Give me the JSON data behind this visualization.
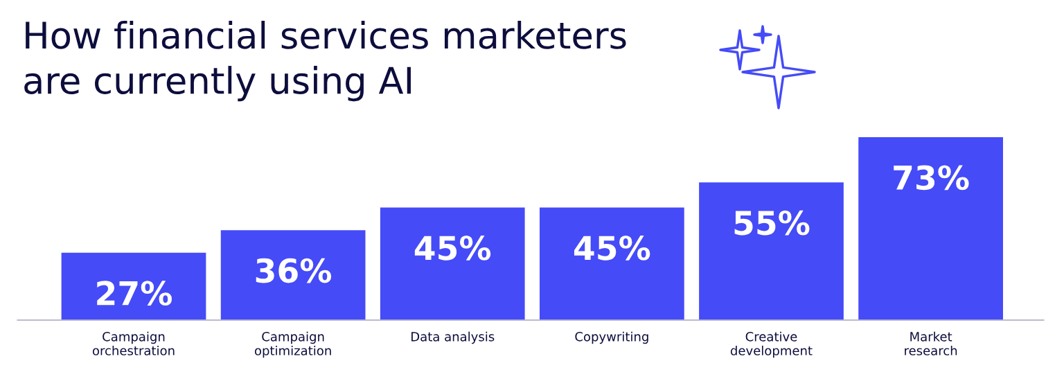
{
  "chart_data": {
    "type": "bar",
    "title": "How financial services marketers\nare currently using AI",
    "categories": [
      "Campaign\norchestration",
      "Campaign\noptimization",
      "Data analysis",
      "Copywriting",
      "Creative\ndevelopment",
      "Market\nresearch"
    ],
    "values": [
      27,
      36,
      45,
      45,
      55,
      73
    ],
    "value_labels": [
      "27%",
      "36%",
      "45%",
      "45%",
      "55%",
      "73%"
    ],
    "color": "#454bf7",
    "tick_labels": "x",
    "grid": false,
    "legend": false
  }
}
